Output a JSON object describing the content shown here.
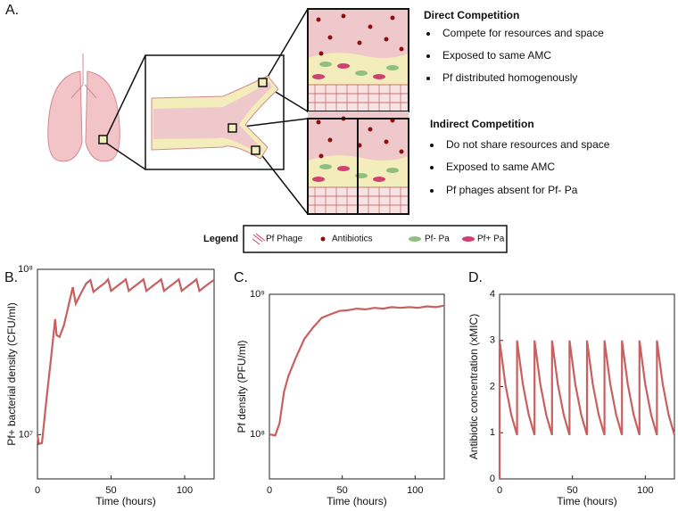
{
  "panel_a": {
    "label": "A.",
    "direct": {
      "title": "Direct Competition",
      "bullets": [
        "Compete for resources and space",
        "Exposed to same AMC",
        "Pf distributed homogenously"
      ]
    },
    "indirect": {
      "title": "Indirect Competition",
      "bullets": [
        "Do not share resources and space",
        "Exposed to same AMC",
        "Pf phages absent for Pf- Pa"
      ]
    },
    "legend": {
      "title": "Legend",
      "items": [
        "Pf Phage",
        "Antibiotics",
        "Pf- Pa",
        "Pf+ Pa"
      ]
    }
  },
  "chart_data": [
    {
      "type": "line",
      "panel_label": "B.",
      "xlabel": "Time (hours)",
      "ylabel": "Pf+ bacterial density (CFU/ml)",
      "color": "#c86060",
      "yscale": "log",
      "xlim": [
        0,
        120
      ],
      "xticks": [
        0,
        50,
        100
      ],
      "ylim": [
        5400000,
        100000000
      ],
      "yticks": [
        {
          "value": 10000000,
          "label": "10⁷"
        },
        {
          "value": 100000000,
          "label": "10⁸"
        }
      ],
      "x": [
        0,
        1,
        3,
        6,
        9,
        12,
        13,
        15,
        18,
        21,
        24,
        26,
        29,
        33,
        36,
        38,
        42,
        46,
        48,
        50,
        54,
        58,
        60,
        62,
        66,
        70,
        72,
        74,
        78,
        82,
        84,
        86,
        90,
        94,
        96,
        98,
        102,
        106,
        108,
        110,
        114,
        118,
        120
      ],
      "values": [
        10000000,
        8800000,
        8900000,
        16000000,
        28000000,
        50000000,
        40000000,
        39000000,
        46000000,
        60000000,
        78000000,
        62000000,
        70000000,
        82000000,
        86000000,
        73000000,
        78000000,
        83000000,
        87000000,
        74000000,
        79000000,
        84000000,
        87000000,
        74000000,
        79000000,
        84000000,
        87000000,
        74000000,
        79000000,
        84000000,
        87000000,
        74000000,
        79000000,
        84000000,
        87000000,
        74000000,
        79000000,
        84000000,
        87000000,
        74000000,
        79000000,
        84000000,
        86000000
      ]
    },
    {
      "type": "line",
      "panel_label": "C.",
      "xlabel": "Time (hours)",
      "ylabel": "Pf density (PFU/ml)",
      "color": "#c86060",
      "yscale": "log",
      "xlim": [
        0,
        120
      ],
      "xticks": [
        0,
        50,
        100
      ],
      "ylim": [
        48000000,
        1000000000
      ],
      "yticks": [
        {
          "value": 100000000,
          "label": "10⁸"
        },
        {
          "value": 1000000000,
          "label": "10⁹"
        }
      ],
      "x": [
        0,
        4,
        7,
        10,
        13,
        18,
        24,
        30,
        36,
        42,
        48,
        54,
        60,
        66,
        72,
        78,
        84,
        90,
        96,
        102,
        108,
        114,
        120
      ],
      "values": [
        100000000,
        98000000,
        120000000,
        200000000,
        260000000,
        350000000,
        480000000,
        580000000,
        680000000,
        720000000,
        760000000,
        770000000,
        790000000,
        780000000,
        800000000,
        790000000,
        810000000,
        800000000,
        810000000,
        800000000,
        820000000,
        810000000,
        830000000
      ]
    },
    {
      "type": "line",
      "panel_label": "D.",
      "xlabel": "Time (hours)",
      "ylabel": "Antibiotic concentration (xMIC)",
      "color": "#c86060",
      "xlim": [
        0,
        120
      ],
      "xticks": [
        0,
        50,
        100
      ],
      "ylim": [
        0,
        4
      ],
      "yticks": [
        0,
        1,
        2,
        3,
        4
      ],
      "x": [
        0,
        0,
        4,
        8,
        12,
        12,
        16,
        20,
        24,
        24,
        28,
        32,
        36,
        36,
        40,
        44,
        48,
        48,
        52,
        56,
        60,
        60,
        64,
        68,
        72,
        72,
        76,
        80,
        84,
        84,
        88,
        92,
        96,
        96,
        100,
        104,
        108,
        108,
        112,
        116,
        120
      ],
      "values": [
        0,
        3,
        2.05,
        1.39,
        0.95,
        3,
        2.05,
        1.39,
        0.95,
        3,
        2.05,
        1.39,
        0.95,
        3,
        2.05,
        1.39,
        0.95,
        3,
        2.05,
        1.39,
        0.95,
        3,
        2.05,
        1.39,
        0.95,
        3,
        2.05,
        1.39,
        0.95,
        3,
        2.05,
        1.39,
        0.95,
        3,
        2.05,
        1.39,
        0.95,
        3,
        2.05,
        1.39,
        0.95
      ]
    }
  ]
}
